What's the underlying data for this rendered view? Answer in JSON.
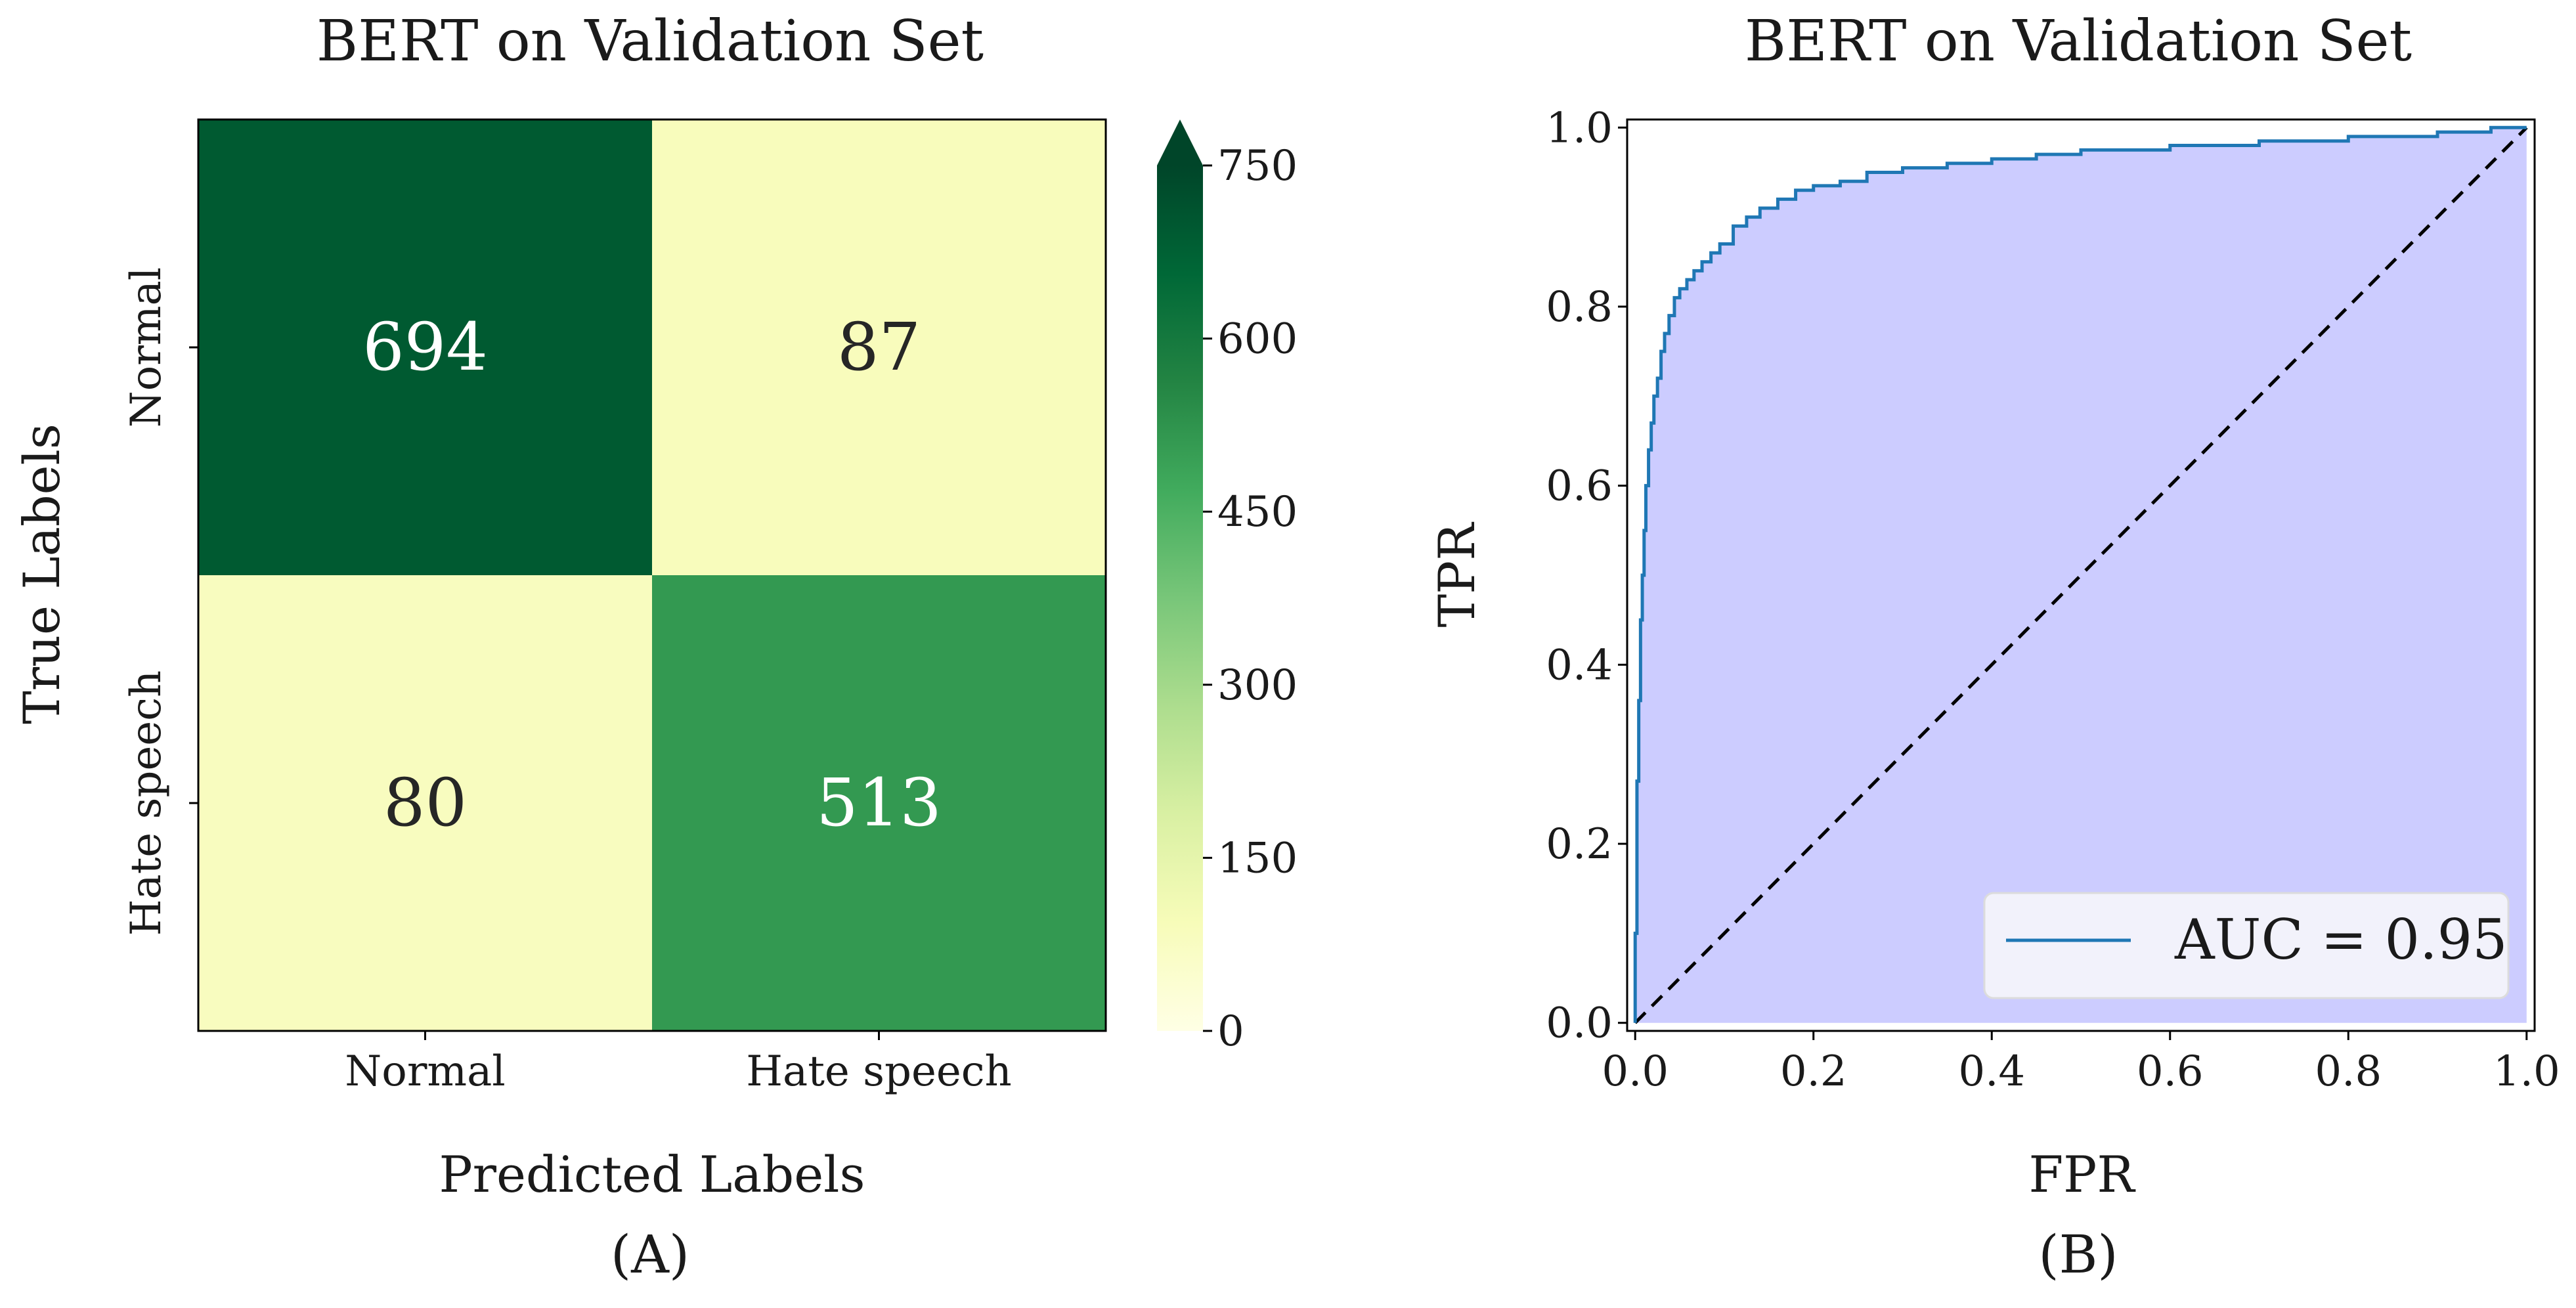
{
  "chart_data": [
    {
      "type": "heatmap",
      "title": "BERT on Validation Set",
      "xlabel": "Predicted Labels",
      "ylabel": "True Labels",
      "x_categories": [
        "Normal",
        "Hate speech"
      ],
      "y_categories": [
        "Normal",
        "Hate speech"
      ],
      "values": [
        [
          694,
          87
        ],
        [
          80,
          513
        ]
      ],
      "colorbar": {
        "range": [
          0,
          750
        ],
        "ticks": [
          0,
          150,
          300,
          450,
          600,
          750
        ],
        "extend": "max",
        "colormap": "YlGn"
      },
      "panel_label": "(A)"
    },
    {
      "type": "line",
      "title": "BERT on Validation Set",
      "xlabel": "FPR",
      "ylabel": "TPR",
      "xlim": [
        0.0,
        1.0
      ],
      "ylim": [
        0.0,
        1.0
      ],
      "xticks": [
        "0.0",
        "0.2",
        "0.4",
        "0.6",
        "0.8",
        "1.0"
      ],
      "yticks": [
        "0.0",
        "0.2",
        "0.4",
        "0.6",
        "0.8",
        "1.0"
      ],
      "legend": {
        "position": "lower-right",
        "entries": [
          "AUC = 0.95"
        ]
      },
      "series": [
        {
          "name": "AUC = 0.95",
          "color": "#1f77b4",
          "fill": "#ccccff",
          "x": [
            0.0,
            0.0,
            0.002,
            0.002,
            0.004,
            0.004,
            0.006,
            0.006,
            0.008,
            0.008,
            0.01,
            0.01,
            0.012,
            0.012,
            0.015,
            0.015,
            0.018,
            0.018,
            0.021,
            0.021,
            0.025,
            0.025,
            0.029,
            0.029,
            0.033,
            0.033,
            0.038,
            0.038,
            0.044,
            0.044,
            0.05,
            0.05,
            0.058,
            0.058,
            0.066,
            0.066,
            0.075,
            0.075,
            0.085,
            0.085,
            0.095,
            0.095,
            0.11,
            0.11,
            0.125,
            0.125,
            0.14,
            0.14,
            0.16,
            0.16,
            0.18,
            0.18,
            0.2,
            0.2,
            0.23,
            0.23,
            0.26,
            0.26,
            0.3,
            0.3,
            0.35,
            0.35,
            0.4,
            0.4,
            0.45,
            0.45,
            0.5,
            0.5,
            0.6,
            0.6,
            0.7,
            0.7,
            0.8,
            0.8,
            0.9,
            0.9,
            0.96,
            0.96,
            1.0
          ],
          "y": [
            0.0,
            0.1,
            0.1,
            0.27,
            0.27,
            0.36,
            0.36,
            0.45,
            0.45,
            0.5,
            0.5,
            0.55,
            0.55,
            0.6,
            0.6,
            0.64,
            0.64,
            0.67,
            0.67,
            0.7,
            0.7,
            0.72,
            0.72,
            0.75,
            0.75,
            0.77,
            0.77,
            0.79,
            0.79,
            0.81,
            0.81,
            0.82,
            0.82,
            0.83,
            0.83,
            0.84,
            0.84,
            0.85,
            0.85,
            0.86,
            0.86,
            0.87,
            0.87,
            0.89,
            0.89,
            0.9,
            0.9,
            0.91,
            0.91,
            0.92,
            0.92,
            0.93,
            0.93,
            0.935,
            0.935,
            0.94,
            0.94,
            0.95,
            0.95,
            0.955,
            0.955,
            0.96,
            0.96,
            0.965,
            0.965,
            0.97,
            0.97,
            0.975,
            0.975,
            0.98,
            0.98,
            0.985,
            0.985,
            0.99,
            0.99,
            0.995,
            0.995,
            1.0,
            1.0
          ]
        },
        {
          "color": "#000000",
          "dashed": true,
          "x": [
            0.0,
            1.0
          ],
          "y": [
            0.0,
            1.0
          ]
        }
      ],
      "panel_label": "(B)"
    }
  ]
}
